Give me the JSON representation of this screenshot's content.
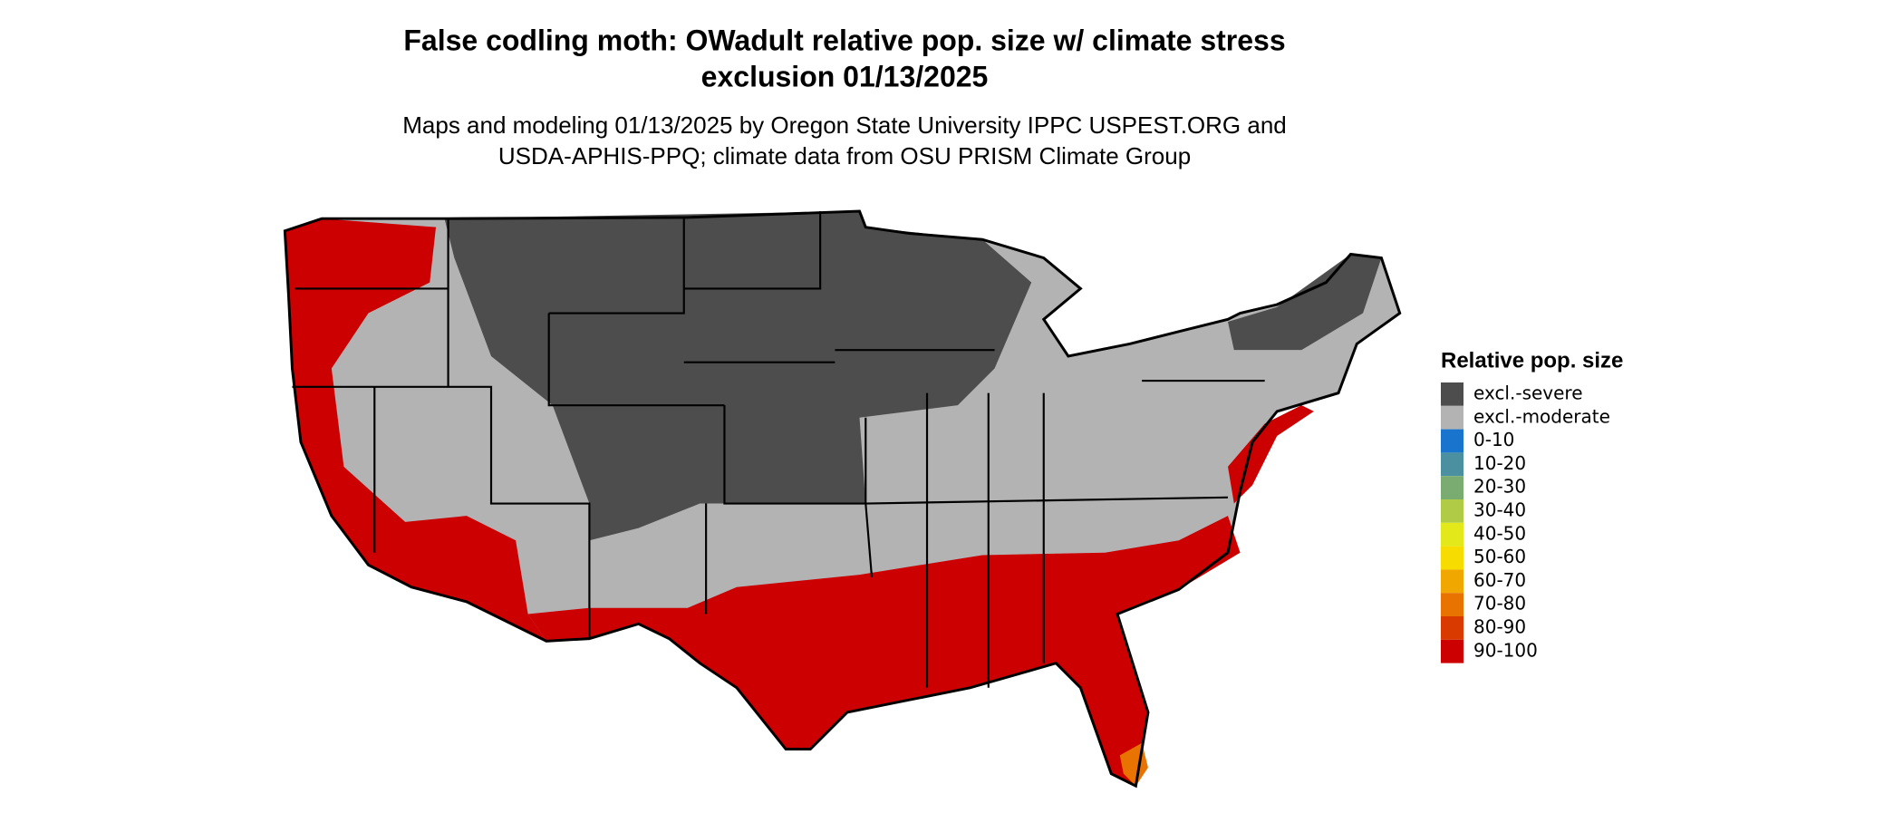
{
  "header": {
    "title": [
      "False codling moth: OWadult relative pop. size w/ climate stress",
      "exclusion 01/13/2025"
    ],
    "subtitle": [
      "Maps and modeling 01/13/2025 by Oregon State University IPPC USPEST.ORG and",
      "USDA-APHIS-PPQ; climate data from OSU PRISM Climate Group"
    ]
  },
  "legend": {
    "title": "Relative pop. size",
    "items": [
      {
        "label": "excl.-severe",
        "color": "#4d4d4d"
      },
      {
        "label": "excl.-moderate",
        "color": "#b3b3b3"
      },
      {
        "label": "0-10",
        "color": "#1874cd"
      },
      {
        "label": "10-20",
        "color": "#4a90a0"
      },
      {
        "label": "20-30",
        "color": "#7aac72"
      },
      {
        "label": "30-40",
        "color": "#b0cc46"
      },
      {
        "label": "40-50",
        "color": "#e3e81a"
      },
      {
        "label": "50-60",
        "color": "#f7dc00"
      },
      {
        "label": "60-70",
        "color": "#f0a800"
      },
      {
        "label": "70-80",
        "color": "#e87300"
      },
      {
        "label": "80-90",
        "color": "#d93a00"
      },
      {
        "label": "90-100",
        "color": "#cc0000"
      }
    ]
  }
}
